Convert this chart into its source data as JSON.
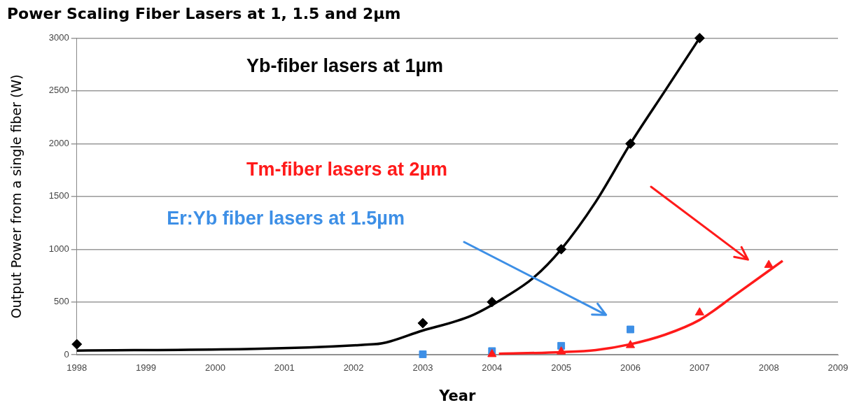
{
  "chart_data": {
    "type": "scatter",
    "title": "Power Scaling Fiber Lasers at 1, 1.5 and 2µm",
    "xlabel": "Year",
    "ylabel": "Output Power from a single fiber (W)",
    "xlim": [
      1998,
      2009
    ],
    "xticks": [
      1998,
      1999,
      2000,
      2001,
      2002,
      2003,
      2004,
      2005,
      2006,
      2007,
      2008,
      2009
    ],
    "ylim": [
      0,
      3000
    ],
    "yticks": [
      0,
      500,
      1000,
      1500,
      2000,
      2500,
      3000
    ],
    "grid": "y",
    "legend": false,
    "series": [
      {
        "name": "Yb-fiber lasers at 1µm",
        "color": "#000000",
        "marker": "diamond",
        "x": [
          1998,
          2003,
          2004,
          2005,
          2006,
          2007
        ],
        "values": [
          100,
          300,
          500,
          1000,
          2000,
          3000
        ]
      },
      {
        "name": "Er:Yb fiber lasers at 1.5µm",
        "color": "#3d8fe6",
        "marker": "square",
        "x": [
          2003,
          2004,
          2005,
          2006
        ],
        "values": [
          5,
          35,
          85,
          240
        ]
      },
      {
        "name": "Tm-fiber lasers at 2µm",
        "color": "#ff1a1a",
        "marker": "triangle",
        "x": [
          2004,
          2005,
          2006,
          2007,
          2008
        ],
        "values": [
          5,
          30,
          90,
          400,
          850
        ]
      },
      {
        "color": "#000000",
        "type": "line",
        "marker": "none",
        "x": [
          1998,
          2002.3,
          2003,
          2003.7,
          2004.2,
          2004.6,
          2005,
          2005.5,
          2006,
          2006.5,
          2007
        ],
        "values": [
          40,
          100,
          230,
          370,
          550,
          730,
          1000,
          1450,
          2000,
          2500,
          3000
        ]
      },
      {
        "color": "#ff1a1a",
        "type": "line",
        "marker": "none",
        "x": [
          2004.1,
          2005,
          2005.5,
          2006,
          2006.5,
          2007,
          2007.5,
          2008.2
        ],
        "values": [
          10,
          25,
          45,
          100,
          190,
          330,
          560,
          890
        ]
      }
    ]
  }
}
